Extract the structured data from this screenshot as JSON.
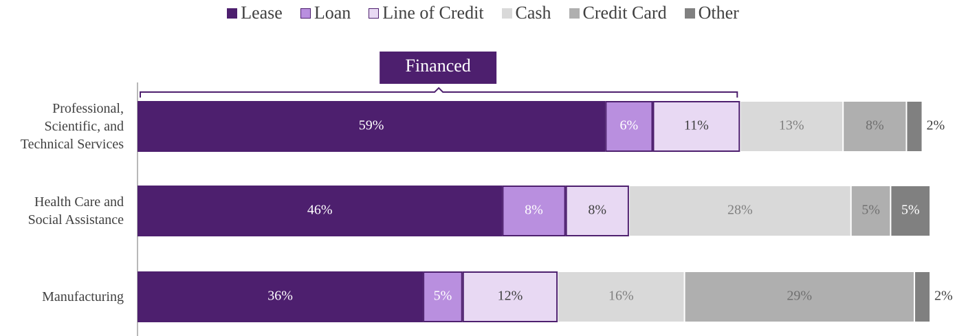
{
  "chart_data": {
    "type": "stacked-bar-horizontal",
    "categories": [
      "Professional, Scientific, and Technical Services",
      "Health Care and Social Assistance",
      "Manufacturing"
    ],
    "series": [
      {
        "name": "Lease",
        "color": "#4d1f6e",
        "values": [
          59,
          46,
          36
        ],
        "value_labels": [
          "59%",
          "46%",
          "36%"
        ]
      },
      {
        "name": "Loan",
        "color": "#b98fdf",
        "values": [
          6,
          8,
          5
        ],
        "value_labels": [
          "6%",
          "8%",
          "5%"
        ]
      },
      {
        "name": "Line of Credit",
        "color": "#e8d9f3",
        "values": [
          11,
          8,
          12
        ],
        "value_labels": [
          "11%",
          "8%",
          "12%"
        ]
      },
      {
        "name": "Cash",
        "color": "#d9d9d9",
        "values": [
          13,
          28,
          16
        ],
        "value_labels": [
          "13%",
          "28%",
          "16%"
        ]
      },
      {
        "name": "Credit Card",
        "color": "#afafaf",
        "values": [
          8,
          5,
          29
        ],
        "value_labels": [
          "8%",
          "5%",
          "29%"
        ]
      },
      {
        "name": "Other",
        "color": "#808080",
        "values": [
          2,
          5,
          2
        ],
        "value_labels": [
          "2%",
          "5%",
          "2%"
        ]
      }
    ],
    "xlim": [
      0,
      100
    ],
    "annotation": "Financed"
  }
}
